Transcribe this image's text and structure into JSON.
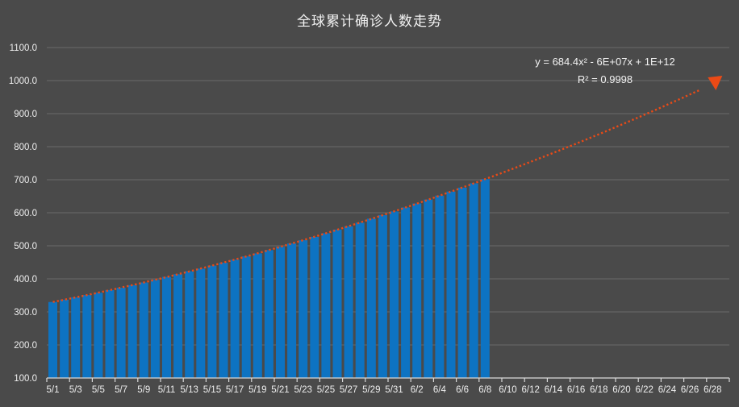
{
  "title": "全球累计确诊人数走势",
  "trendline_label": {
    "equation": "y = 684.4x² - 6E+07x + 1E+12",
    "r_squared": "R² = 0.9998"
  },
  "colors": {
    "background": "#4A4A4A",
    "bar": "#0D73C2",
    "trendline": "#EB4A16",
    "gridline": "#6B6B6B",
    "axis_line": "#D9D9D9",
    "text": "#F2F2F2",
    "tick_label": "#EFEFEF"
  },
  "chart_data": {
    "type": "bar",
    "title": "全球累计确诊人数走势",
    "xlabel": "",
    "ylabel": "",
    "ylim": [
      100,
      1100
    ],
    "y_tick_step": 100,
    "y_tick_labels": [
      "100.0",
      "200.0",
      "300.0",
      "400.0",
      "500.0",
      "600.0",
      "700.0",
      "800.0",
      "900.0",
      "1000.0",
      "1100.0"
    ],
    "grid": "horizontal-only",
    "legend": "none",
    "categories": [
      "5/1",
      "5/2",
      "5/3",
      "5/4",
      "5/5",
      "5/6",
      "5/7",
      "5/8",
      "5/9",
      "5/10",
      "5/11",
      "5/12",
      "5/13",
      "5/14",
      "5/15",
      "5/16",
      "5/17",
      "5/18",
      "5/19",
      "5/20",
      "5/21",
      "5/22",
      "5/23",
      "5/24",
      "5/25",
      "5/26",
      "5/27",
      "5/28",
      "5/29",
      "5/30",
      "5/31",
      "6/1",
      "6/2",
      "6/3",
      "6/4",
      "6/5",
      "6/6",
      "6/7",
      "6/8"
    ],
    "values": [
      330,
      337,
      344,
      351,
      358,
      366,
      373,
      381,
      389,
      397,
      406,
      414,
      423,
      431,
      440,
      449,
      458,
      468,
      477,
      487,
      497,
      507,
      517,
      527,
      538,
      549,
      559,
      570,
      582,
      593,
      604,
      616,
      628,
      640,
      652,
      664,
      676,
      689,
      702
    ],
    "x_tick_labels": [
      "5/1",
      "5/3",
      "5/5",
      "5/7",
      "5/9",
      "5/11",
      "5/13",
      "5/15",
      "5/17",
      "5/19",
      "5/21",
      "5/23",
      "5/25",
      "5/27",
      "5/29",
      "5/31",
      "6/2",
      "6/4",
      "6/6",
      "6/8",
      "6/10",
      "6/12",
      "6/14",
      "6/16",
      "6/18",
      "6/20",
      "6/22",
      "6/24",
      "6/26",
      "6/28"
    ],
    "x_axis_total_day_slots": 60,
    "trendline": {
      "type": "polynomial",
      "order": 2,
      "style": "dotted",
      "equation": "y = 684.4x² - 6E+07x + 1E+12",
      "r2": "R² = 0.9998",
      "fit_coefficients_day_index": {
        "a": 0.0797,
        "b": 6.75,
        "c": 330
      },
      "extends_to_day_index": 58.5,
      "arrow_end_value": 1000
    }
  }
}
